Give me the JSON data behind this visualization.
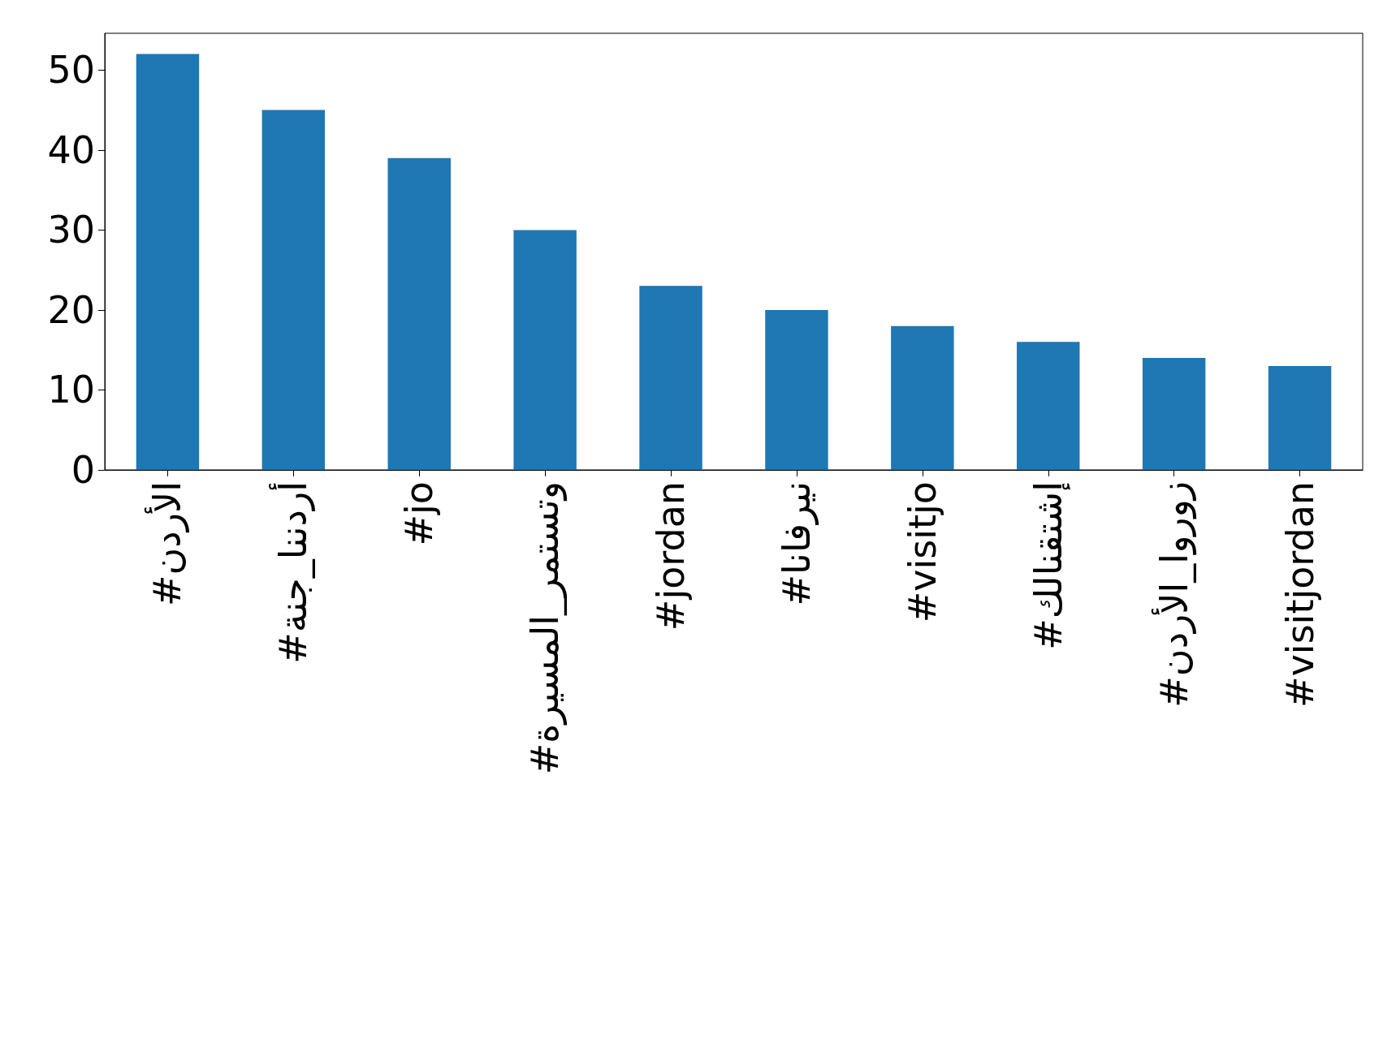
{
  "chart_data": {
    "type": "bar",
    "categories": [
      "#الأردن",
      "#أردننا_جنة",
      "#jo",
      "#وتستمر_المسيرة",
      "#jordan",
      "#نيرفانا",
      "#visitjo",
      "#إشتقنالك",
      "#زوروا_الأردن",
      "#visitjordan"
    ],
    "values": [
      52,
      45,
      39,
      30,
      23,
      20,
      18,
      16,
      14,
      13
    ],
    "color": "#1f77b4",
    "ylim": [
      0,
      54.6
    ],
    "yticks": [
      0,
      10,
      20,
      30,
      40,
      50
    ],
    "grid": false
  }
}
